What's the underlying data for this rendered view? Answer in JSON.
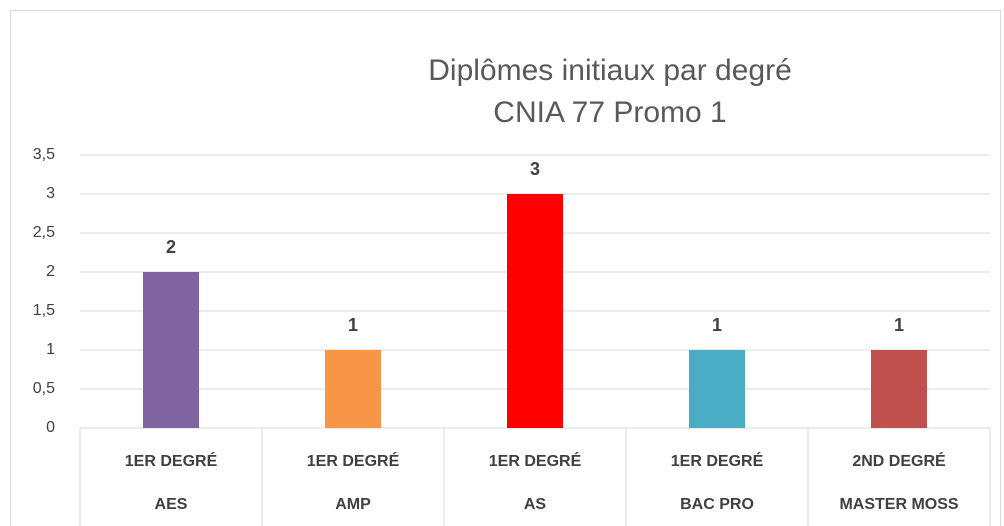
{
  "chart_data": {
    "type": "bar",
    "title": [
      "Diplômes initiaux par degré",
      "CNIA 77 Promo 1"
    ],
    "group_labels": [
      "1ER DEGRÉ",
      "1ER DEGRÉ",
      "1ER DEGRÉ",
      "1ER DEGRÉ",
      "2ND DEGRÉ"
    ],
    "categories": [
      "AES",
      "AMP",
      "AS",
      "BAC PRO",
      "MASTER MOSS"
    ],
    "values": [
      2,
      1,
      3,
      1,
      1
    ],
    "colors": [
      "#8064a2",
      "#f79646",
      "#ff0000",
      "#4bacc6",
      "#c0504d"
    ],
    "ylim": [
      0,
      3.5
    ],
    "yticks": [
      0,
      {
        "value": 0.5,
        "label": "0,5"
      },
      1,
      {
        "value": 1.5,
        "label": "1,5"
      },
      2,
      {
        "value": 2.5,
        "label": "2,5"
      },
      3,
      {
        "value": 3.5,
        "label": "3,5"
      }
    ],
    "grid": true
  }
}
